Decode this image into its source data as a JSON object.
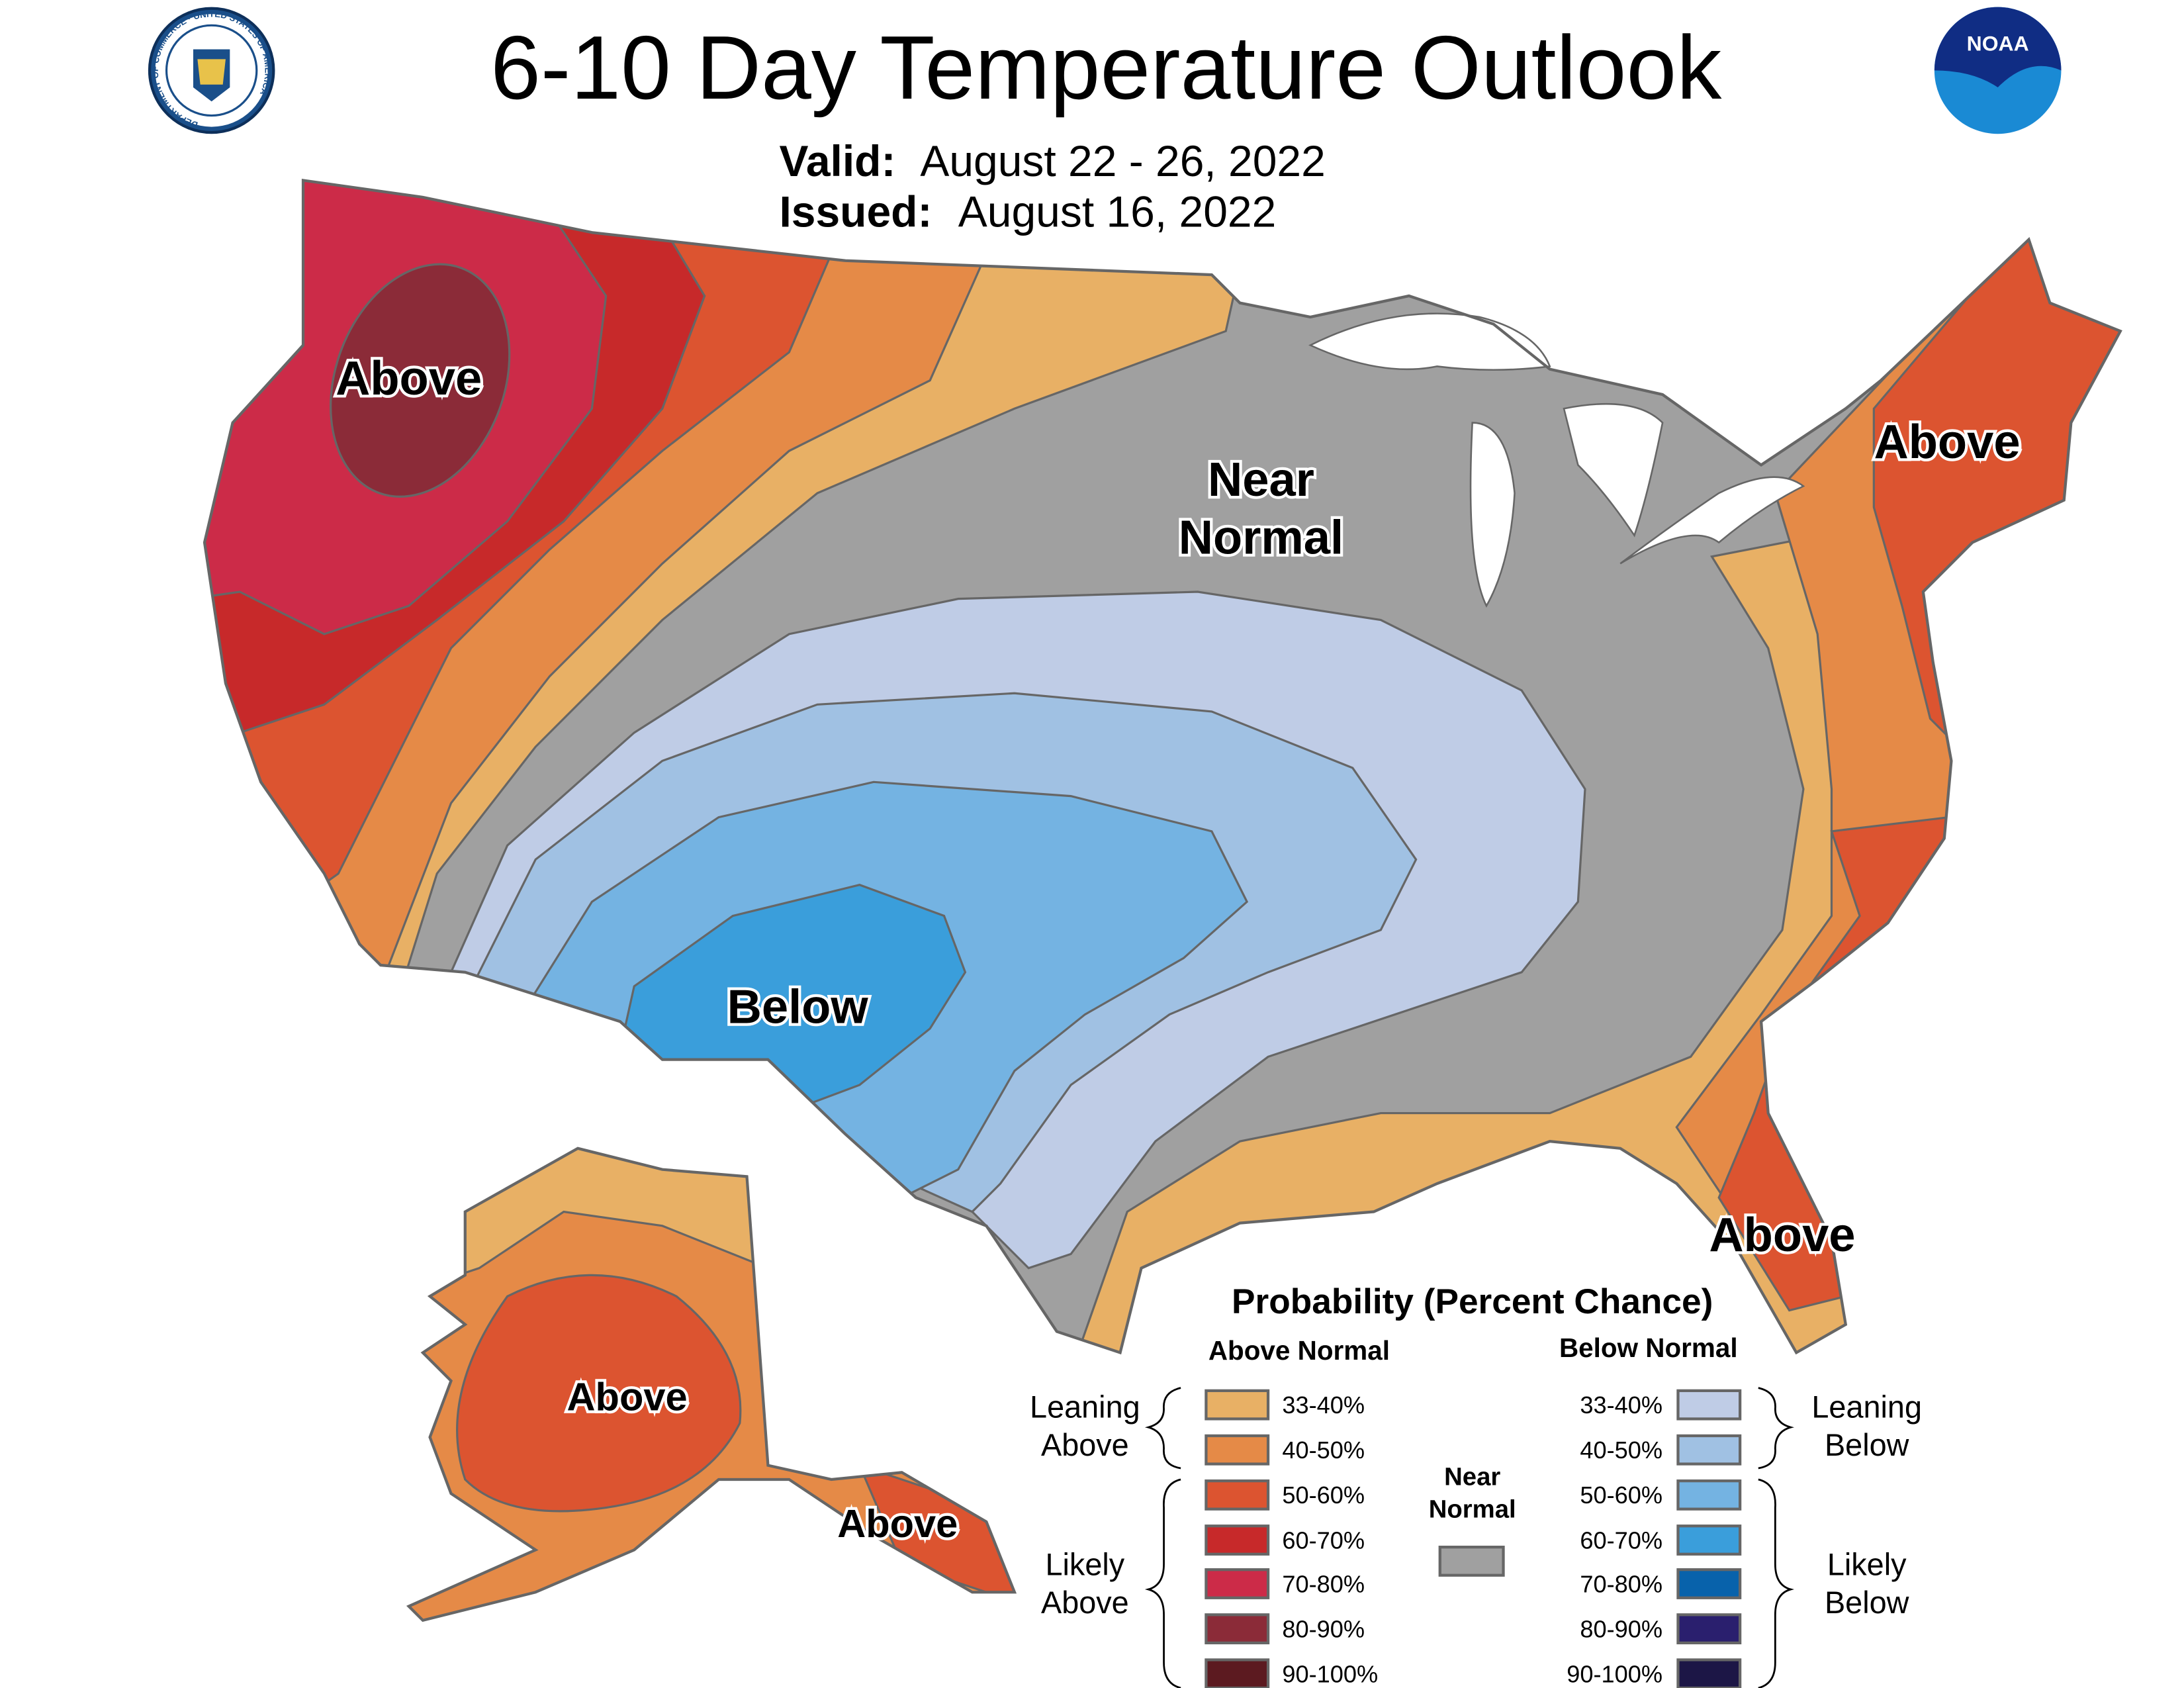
{
  "header": {
    "title": "6-10 Day Temperature Outlook",
    "valid_label": "Valid:",
    "valid_value": "August 22 - 26, 2022",
    "issued_label": "Issued:",
    "issued_value": "August 16, 2022",
    "left_logo": "Department of Commerce seal",
    "left_logo_text": "DEPARTMENT OF COMMERCE · UNITED STATES OF AMERICA",
    "right_logo": "NOAA logo",
    "right_logo_text": "NOAA"
  },
  "map_labels": {
    "northwest": "Above",
    "northeast": "Above",
    "central_line1": "Near",
    "central_line2": "Normal",
    "southwest": "Below",
    "florida": "Above",
    "alaska": "Above",
    "alaska_southeast": "Above"
  },
  "legend": {
    "title": "Probability (Percent Chance)",
    "above_header": "Above Normal",
    "below_header": "Below Normal",
    "leaning_above": [
      "Leaning",
      "Above"
    ],
    "likely_above": [
      "Likely",
      "Above"
    ],
    "leaning_below": [
      "Leaning",
      "Below"
    ],
    "likely_below": [
      "Likely",
      "Below"
    ],
    "near_normal": [
      "Near",
      "Normal"
    ],
    "near_normal_color": "#A0A0A0",
    "above": [
      {
        "range": "33-40%",
        "color": "#E8B065"
      },
      {
        "range": "40-50%",
        "color": "#E58A47"
      },
      {
        "range": "50-60%",
        "color": "#DC5430"
      },
      {
        "range": "60-70%",
        "color": "#C7292A"
      },
      {
        "range": "70-80%",
        "color": "#CC2B48"
      },
      {
        "range": "80-90%",
        "color": "#8B2B38"
      },
      {
        "range": "90-100%",
        "color": "#5C1A20"
      }
    ],
    "below": [
      {
        "range": "33-40%",
        "color": "#BFCCE6"
      },
      {
        "range": "40-50%",
        "color": "#A0C1E3"
      },
      {
        "range": "50-60%",
        "color": "#74B3E2"
      },
      {
        "range": "60-70%",
        "color": "#3A9EDB"
      },
      {
        "range": "70-80%",
        "color": "#0862AB"
      },
      {
        "range": "80-90%",
        "color": "#2A1F6E"
      },
      {
        "range": "90-100%",
        "color": "#1C1646"
      }
    ]
  }
}
